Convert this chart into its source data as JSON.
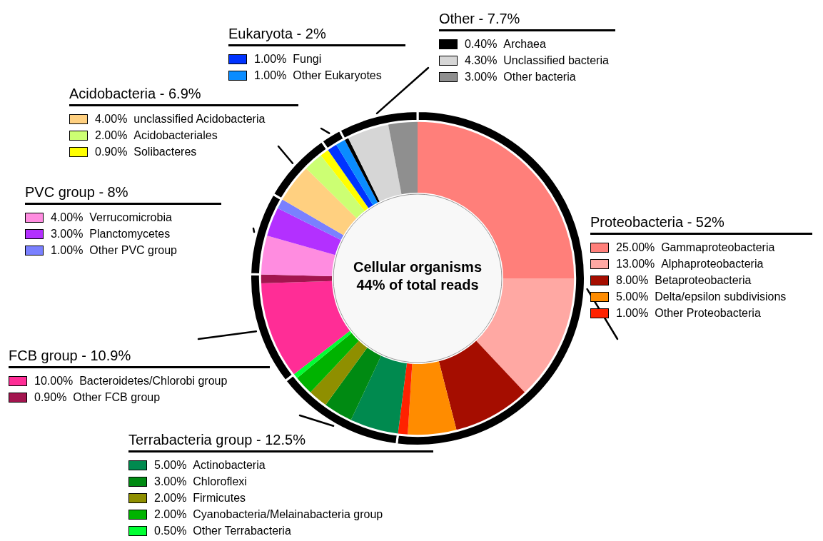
{
  "chart_data": {
    "type": "donut",
    "title": "Cellular organisms",
    "subtitle": "44% of total reads",
    "categories": [
      "Gammaproteobacteria",
      "Alphaproteobacteria",
      "Betaproteobacteria",
      "Delta/epsilon subdivisions",
      "Other Proteobacteria",
      "Actinobacteria",
      "Chloroflexi",
      "Firmicutes",
      "Cyanobacteria/Melainabacteria group",
      "Other Terrabacteria",
      "Bacteroidetes/Chlorobi group",
      "Other FCB group",
      "Verrucomicrobia",
      "Planctomycetes",
      "Other PVC group",
      "unclassified Acidobacteria",
      "Acidobacteriales",
      "Solibacteres",
      "Fungi",
      "Other Eukaryotes",
      "Archaea",
      "Unclassified bacteria",
      "Other bacteria"
    ],
    "series": [
      {
        "values": [
          25,
          13,
          8,
          5,
          1,
          5,
          3,
          2,
          2,
          0.5,
          10,
          0.9,
          4,
          3,
          1,
          4,
          2,
          0.9,
          1,
          1,
          0.4,
          4.3,
          3
        ],
        "colors": [
          "#ff7f7a",
          "#ffa8a3",
          "#a50d00",
          "#ff8c00",
          "#ff2200",
          "#008a4f",
          "#008a12",
          "#8f8f00",
          "#00b300",
          "#00ff33",
          "#ff2d96",
          "#a3154f",
          "#ff8ce0",
          "#b330ff",
          "#7a80ff",
          "#ffd080",
          "#ccff73",
          "#ffff00",
          "#0033ff",
          "#0a8cff",
          "#000000",
          "#d6d6d6",
          "#8f8f8f"
        ],
        "value_labels": [
          "25.00%",
          "13.00%",
          "8.00%",
          "5.00%",
          "1.00%",
          "5.00%",
          "3.00%",
          "2.00%",
          "2.00%",
          "0.50%",
          "10.00%",
          "0.90%",
          "4.00%",
          "3.00%",
          "1.00%",
          "4.00%",
          "2.00%",
          "0.90%",
          "1.00%",
          "1.00%",
          "0.40%",
          "4.30%",
          "3.00%"
        ]
      },
      {
        "values": [
          52,
          null,
          null,
          null,
          null,
          12.5,
          null,
          null,
          null,
          null,
          10.9,
          null,
          8,
          null,
          null,
          6.9,
          null,
          null,
          2,
          null,
          7.7,
          null,
          null
        ],
        "color": "#000000"
      }
    ],
    "annotations": [
      "Proteobacteria - 52%",
      "Terrabacteria group - 12.5%",
      "FCB group - 10.9%",
      "PVC group - 8%",
      "Acidobacteria - 6.9%",
      "Eukaryota - 2%",
      "Other - 7.7%"
    ],
    "legend": "bottom left"
  }
}
